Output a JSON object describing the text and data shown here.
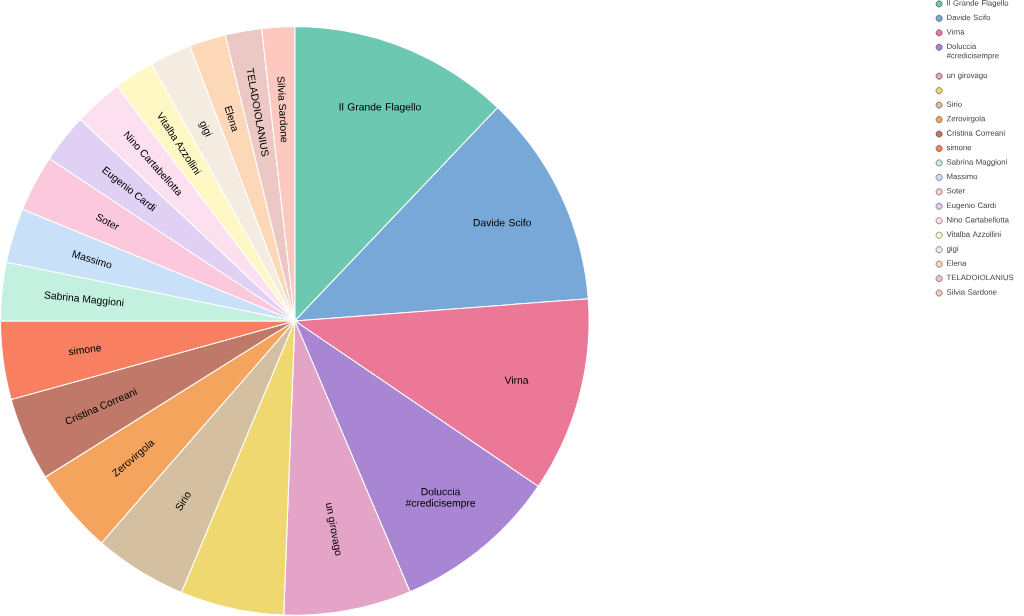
{
  "chart_data": {
    "type": "pie",
    "categories": [
      "Il Grande Flagello",
      "Davide Scifo",
      "Virna",
      "Doluccia #credicisempre",
      "un girovago",
      null,
      "Sirio",
      "Zerovirgola",
      "Cristina Correani",
      "simone",
      "Sabrina Maggioni",
      "Massimo",
      "Soter",
      "Eugenio Cardi",
      "Nino Cartabellotta",
      "Vitalba Azzollini",
      "gigi",
      "Elena",
      "TELADOIOLANIUS",
      "Silvia Sardone"
    ],
    "values": [
      12.1,
      11.7,
      10.7,
      9.1,
      7.0,
      5.7,
      5.1,
      4.7,
      4.6,
      4.3,
      3.2,
      3.0,
      3.1,
      2.7,
      2.7,
      2.2,
      2.3,
      2.0,
      2.0,
      1.8
    ],
    "colors": [
      "#6cc8b0",
      "#78a8d8",
      "#ec7898",
      "#a886d4",
      "#e4a4c8",
      "#f0d870",
      "#d4c0a0",
      "#f4a45c",
      "#c07868",
      "#f88060",
      "#c4f0e0",
      "#c8e0f8",
      "#fcc8dc",
      "#e0d0f4",
      "#fce0f0",
      "#fff8c4",
      "#f4ece0",
      "#fcd8b8",
      "#ecc8c4",
      "#fcc8c0"
    ],
    "legend": "top right"
  }
}
